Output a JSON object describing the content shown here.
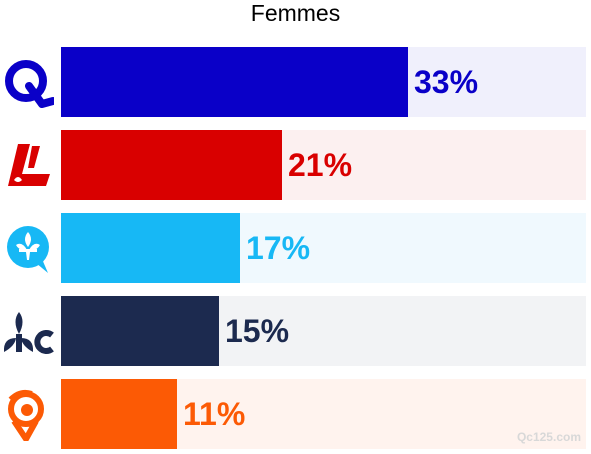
{
  "chart_data": {
    "type": "bar",
    "orientation": "horizontal",
    "title": "Femmes",
    "categories": [
      "CAQ",
      "PLQ",
      "PQ",
      "PCQ",
      "QS"
    ],
    "values": [
      33,
      21,
      17,
      15,
      11
    ],
    "labels": [
      "33%",
      "21%",
      "17%",
      "15%",
      "11%"
    ],
    "colors": [
      "#0a00c8",
      "#d90000",
      "#17b8f5",
      "#1c2a4f",
      "#fc5a05"
    ],
    "track_colors": [
      "#f0f0fc",
      "#fcf0f0",
      "#f0f9fe",
      "#f2f3f5",
      "#fff3ee"
    ],
    "logo_icons": [
      "caq-q-icon",
      "plq-l-icon",
      "pq-fleur-de-lis-bubble-icon",
      "pcq-fleur-de-lis-c-icon",
      "qs-swirl-icon"
    ],
    "xlim": [
      0,
      50
    ],
    "grid": false
  },
  "watermark": "Qc125.com"
}
